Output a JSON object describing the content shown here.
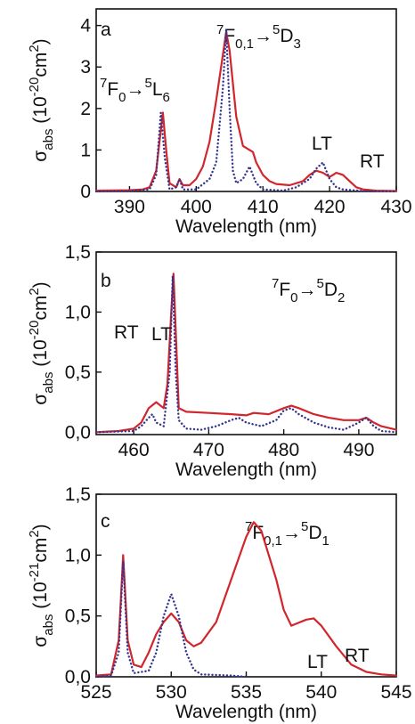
{
  "chart_data": [
    {
      "type": "line",
      "panel_label": "a",
      "x_label": "Wavelength (nm)",
      "y_label": [
        "σ",
        "abs",
        " (10",
        "-20",
        "cm",
        "2",
        ")"
      ],
      "annotations": [
        [
          "7",
          "F",
          "0",
          "→",
          "5",
          "L",
          "6"
        ],
        [
          "7",
          "F",
          "0,1",
          "→",
          "5",
          "D",
          "3"
        ]
      ],
      "xlim": [
        385,
        430
      ],
      "xticks": [
        390,
        400,
        410,
        420,
        430
      ],
      "ylim": [
        0,
        4.4
      ],
      "yticks": [
        0,
        1,
        2,
        3,
        4
      ],
      "series": [
        {
          "name": "RT",
          "color": "#d1262b",
          "style": "solid",
          "x": [
            385,
            390,
            392,
            393,
            394,
            394.5,
            395,
            395.5,
            396,
            397,
            397.5,
            398,
            399,
            400,
            401,
            402,
            403,
            404,
            404.5,
            405,
            406,
            407,
            408,
            408.5,
            409,
            410,
            411,
            412,
            414,
            416,
            417,
            418,
            419,
            420,
            420.5,
            421,
            422,
            423,
            424,
            425,
            427,
            430
          ],
          "values": [
            0.02,
            0.03,
            0.05,
            0.1,
            0.5,
            1.2,
            1.9,
            1.0,
            0.2,
            0.1,
            0.3,
            0.15,
            0.15,
            0.3,
            0.6,
            1.2,
            2.2,
            3.3,
            3.85,
            3.4,
            1.8,
            1.1,
            1.0,
            0.95,
            0.7,
            0.4,
            0.25,
            0.18,
            0.15,
            0.25,
            0.4,
            0.5,
            0.45,
            0.35,
            0.4,
            0.45,
            0.4,
            0.25,
            0.1,
            0.05,
            0.02,
            0.01
          ]
        },
        {
          "name": "LT",
          "color": "#35358f",
          "style": "dotted",
          "x": [
            385,
            390,
            393,
            394,
            394.7,
            395.3,
            396,
            397,
            397.5,
            398,
            400,
            402,
            403,
            404,
            404.5,
            405,
            405.5,
            406,
            407,
            408,
            409,
            410,
            413,
            415,
            417,
            418,
            419,
            420,
            421,
            422,
            425,
            430
          ],
          "values": [
            0,
            0.01,
            0.05,
            0.4,
            1.9,
            0.8,
            0.05,
            0.1,
            0.3,
            0.05,
            0.05,
            0.3,
            0.7,
            2.5,
            3.9,
            2.0,
            0.5,
            0.2,
            0.3,
            0.6,
            0.2,
            0.05,
            0.02,
            0.1,
            0.3,
            0.55,
            0.7,
            0.3,
            0.1,
            0.05,
            0.01,
            0
          ]
        }
      ]
    },
    {
      "type": "line",
      "panel_label": "b",
      "x_label": "Wavelength (nm)",
      "y_label": [
        "σ",
        "abs",
        " (10",
        "-20",
        "cm",
        "2",
        ")"
      ],
      "annotations": [
        [
          "7",
          "F",
          "0",
          "→",
          "5",
          "D",
          "2"
        ]
      ],
      "xlim": [
        455,
        495
      ],
      "xticks": [
        460,
        470,
        480,
        490
      ],
      "ylim": [
        -0.02,
        1.5
      ],
      "yticks": [
        {
          "value": 0,
          "label": "0,0"
        },
        {
          "value": 0.5,
          "label": "0,5"
        },
        {
          "value": 1,
          "label": "1,0"
        },
        {
          "value": 1.5,
          "label": "1,5"
        }
      ],
      "series": [
        {
          "name": "RT",
          "color": "#d1262b",
          "style": "solid",
          "x": [
            455,
            458,
            460,
            461,
            462,
            463,
            464,
            464.5,
            465,
            465.3,
            465.7,
            466,
            467,
            470,
            473,
            475,
            476,
            478,
            480,
            481,
            482,
            484,
            486,
            488,
            490,
            491,
            492,
            493,
            495
          ],
          "values": [
            0,
            0.01,
            0.03,
            0.08,
            0.2,
            0.25,
            0.2,
            0.4,
            1.0,
            1.32,
            0.7,
            0.2,
            0.17,
            0.16,
            0.15,
            0.14,
            0.16,
            0.15,
            0.2,
            0.22,
            0.2,
            0.15,
            0.12,
            0.1,
            0.1,
            0.12,
            0.08,
            0.05,
            0.02
          ]
        },
        {
          "name": "LT",
          "color": "#35358f",
          "style": "dotted",
          "x": [
            455,
            460,
            461,
            462,
            462.5,
            463,
            464,
            464.8,
            465.2,
            465.6,
            466,
            467,
            469,
            471,
            473,
            474,
            475,
            477,
            479,
            480,
            481,
            482,
            484,
            486,
            488,
            490,
            491,
            492,
            493,
            495
          ],
          "values": [
            0,
            0.01,
            0.05,
            0.12,
            0.15,
            0.08,
            0.05,
            0.5,
            1.3,
            0.5,
            0.1,
            0.03,
            0.02,
            0.05,
            0.1,
            0.12,
            0.08,
            0.05,
            0.1,
            0.18,
            0.2,
            0.15,
            0.08,
            0.04,
            0.02,
            0.08,
            0.12,
            0.05,
            0.01,
            0
          ]
        }
      ]
    },
    {
      "type": "line",
      "panel_label": "c",
      "x_label": "Wavelength (nm)",
      "y_label": [
        "σ",
        "abs",
        " (10",
        "-21",
        "cm",
        "2",
        ")"
      ],
      "annotations": [
        [
          "7",
          "F",
          "0,1",
          "→",
          "5",
          "D",
          "1"
        ]
      ],
      "xlim": [
        525,
        545
      ],
      "xticks": [
        525,
        530,
        535,
        540,
        545
      ],
      "ylim": [
        0,
        1.5
      ],
      "yticks": [
        {
          "value": 0,
          "label": "0,0"
        },
        {
          "value": 0.5,
          "label": "0,5"
        },
        {
          "value": 1,
          "label": "1,0"
        },
        {
          "value": 1.5,
          "label": "1,5"
        }
      ],
      "series": [
        {
          "name": "RT",
          "color": "#d1262b",
          "style": "solid",
          "x": [
            525,
            526,
            526.5,
            526.8,
            527.1,
            527.5,
            528,
            528.5,
            529,
            529.5,
            530,
            530.5,
            531,
            531.5,
            532,
            533,
            534,
            535,
            535.5,
            536,
            537,
            537.5,
            538,
            539,
            539.5,
            540,
            541,
            542,
            543,
            544,
            545
          ],
          "values": [
            0.01,
            0.02,
            0.3,
            1.0,
            0.3,
            0.1,
            0.08,
            0.2,
            0.35,
            0.45,
            0.52,
            0.45,
            0.3,
            0.25,
            0.28,
            0.45,
            0.8,
            1.15,
            1.27,
            1.2,
            0.8,
            0.55,
            0.42,
            0.47,
            0.48,
            0.42,
            0.25,
            0.1,
            0.04,
            0.02,
            0.01
          ]
        },
        {
          "name": "LT",
          "color": "#35358f",
          "style": "dotted",
          "x": [
            525,
            526,
            526.5,
            526.8,
            527.1,
            527.5,
            528.5,
            529,
            529.5,
            530,
            530.5,
            531,
            531.5,
            532,
            534,
            535
          ],
          "values": [
            0,
            0.01,
            0.2,
            0.95,
            0.2,
            0.03,
            0.05,
            0.2,
            0.5,
            0.68,
            0.5,
            0.2,
            0.06,
            0.02,
            0.01,
            0
          ]
        }
      ]
    }
  ]
}
